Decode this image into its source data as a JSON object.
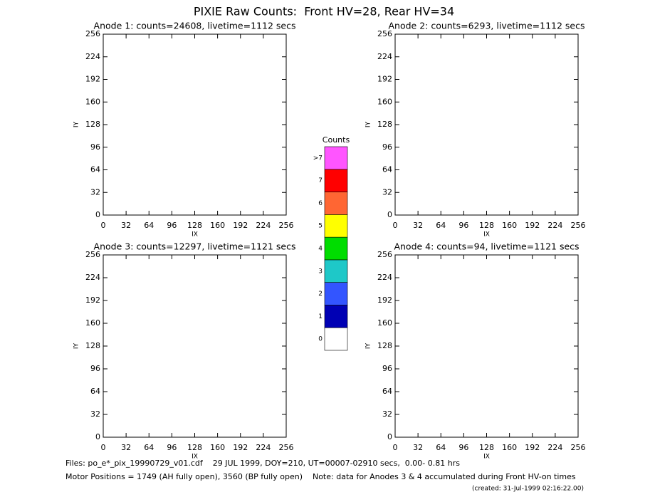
{
  "title": "PIXIE Raw Counts:  Front HV=28, Rear HV=34",
  "chart_data": [
    {
      "type": "heatmap",
      "title": "Anode 1: counts=24608, livetime=1112 secs",
      "x_label": "IX",
      "y_label": "IY",
      "xlim": [
        0,
        256
      ],
      "ylim": [
        0,
        256
      ],
      "xticks": [
        0,
        32,
        64,
        96,
        128,
        160,
        192,
        224,
        256
      ],
      "yticks": [
        0,
        32,
        64,
        96,
        128,
        160,
        192,
        224,
        256
      ]
    },
    {
      "type": "heatmap",
      "title": "Anode 2: counts=6293, livetime=1112 secs",
      "x_label": "IX",
      "y_label": "IY",
      "xlim": [
        0,
        256
      ],
      "ylim": [
        0,
        256
      ],
      "xticks": [
        0,
        32,
        64,
        96,
        128,
        160,
        192,
        224,
        256
      ],
      "yticks": [
        0,
        32,
        64,
        96,
        128,
        160,
        192,
        224,
        256
      ]
    },
    {
      "type": "heatmap",
      "title": "Anode 3: counts=12297, livetime=1121 secs",
      "x_label": "IX",
      "y_label": "IY",
      "xlim": [
        0,
        256
      ],
      "ylim": [
        0,
        256
      ],
      "xticks": [
        0,
        32,
        64,
        96,
        128,
        160,
        192,
        224,
        256
      ],
      "yticks": [
        0,
        32,
        64,
        96,
        128,
        160,
        192,
        224,
        256
      ]
    },
    {
      "type": "heatmap",
      "title": "Anode 4: counts=94, livetime=1121 secs",
      "x_label": "IX",
      "y_label": "IY",
      "xlim": [
        0,
        256
      ],
      "ylim": [
        0,
        256
      ],
      "xticks": [
        0,
        32,
        64,
        96,
        128,
        160,
        192,
        224,
        256
      ],
      "yticks": [
        0,
        32,
        64,
        96,
        128,
        160,
        192,
        224,
        256
      ]
    }
  ],
  "colorbar": {
    "title": "Counts",
    "levels": [
      {
        "label": "0",
        "color": "#ffffff"
      },
      {
        "label": "1",
        "color": "#0000b4"
      },
      {
        "label": "2",
        "color": "#3355ff"
      },
      {
        "label": "3",
        "color": "#1ec8c8"
      },
      {
        "label": "4",
        "color": "#00dd00"
      },
      {
        "label": "5",
        "color": "#ffff00"
      },
      {
        "label": "6",
        "color": "#ff6633"
      },
      {
        "label": "7",
        "color": "#ff0000"
      },
      {
        "label": ">7",
        "color": "#ff55ff"
      }
    ]
  },
  "footer": {
    "files": "Files: po_e*_pix_19990729_v01.cdf    29 JUL 1999, DOY=210, UT=00007-02910 secs,  0.00- 0.81 hrs",
    "motor": "Motor Positions = 1749 (AH fully open), 3560 (BP fully open)    Note: data for Anodes 3 & 4 accumulated during Front HV-on times",
    "created": "(created: 31-Jul-1999 02:16:22.00)"
  }
}
